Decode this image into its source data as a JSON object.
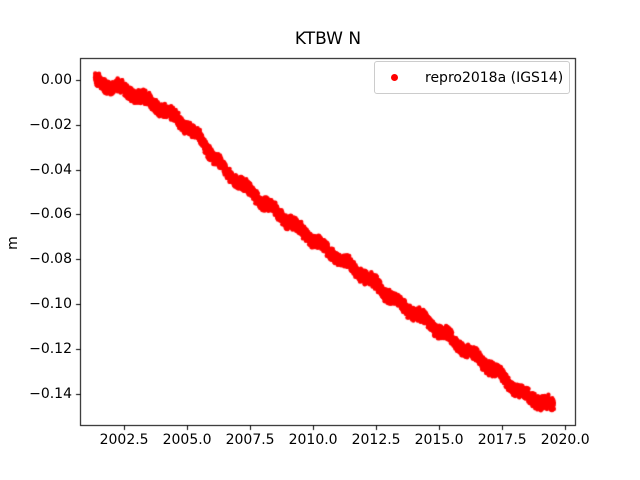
{
  "chart_data": {
    "type": "scatter",
    "title": "KTBW N",
    "xlabel": "",
    "ylabel": "m",
    "grid": false,
    "background_color": "#ffffff",
    "axes_color": "#000000",
    "xlim": [
      2000.75,
      2020.43
    ],
    "ylim": [
      -0.1545,
      0.0098
    ],
    "xticks": {
      "values": [
        2002.5,
        2005.0,
        2007.5,
        2010.0,
        2012.5,
        2015.0,
        2017.5,
        2020.0
      ],
      "labels": [
        "2002.5",
        "2005.0",
        "2007.5",
        "2010.0",
        "2012.5",
        "2015.0",
        "2017.5",
        "2020.0"
      ]
    },
    "yticks": {
      "values": [
        0.0,
        -0.02,
        -0.04,
        -0.06,
        -0.08,
        -0.1,
        -0.12,
        -0.14
      ],
      "labels": [
        "0.00",
        "−0.02",
        "−0.04",
        "−0.06",
        "−0.08",
        "−0.10",
        "−0.12",
        "−0.14"
      ]
    },
    "legend": {
      "position": "upper right",
      "entries": [
        {
          "label": "repro2018a (IGS14)",
          "color": "#ff0000",
          "marker": "dot"
        }
      ]
    },
    "series": [
      {
        "name": "repro2018a (IGS14)",
        "color": "#ff0000",
        "marker": "dot",
        "marker_radius_px": 2.2,
        "n_points": 5200,
        "x_start": 2001.35,
        "x_end": 2019.55,
        "trend_slope_m_per_yr": -0.008,
        "annual_amplitude_m": 0.0011,
        "noise_halfwidth_m": 0.0034,
        "center_line": [
          [
            2001.35,
            0.0
          ],
          [
            2001.6,
            -0.0015
          ],
          [
            2002.3,
            -0.0035
          ],
          [
            2003.0,
            -0.007
          ],
          [
            2003.5,
            -0.0095
          ],
          [
            2004.0,
            -0.013
          ],
          [
            2004.7,
            -0.018
          ],
          [
            2005.5,
            -0.026
          ],
          [
            2006.5,
            -0.0405
          ],
          [
            2007.9,
            -0.0535
          ],
          [
            2009.5,
            -0.067
          ],
          [
            2010.5,
            -0.0755
          ],
          [
            2011.5,
            -0.083
          ],
          [
            2012.5,
            -0.0915
          ],
          [
            2013.45,
            -0.1
          ],
          [
            2014.5,
            -0.1075
          ],
          [
            2015.8,
            -0.1183
          ],
          [
            2017.0,
            -0.128
          ],
          [
            2018.2,
            -0.1395
          ],
          [
            2019.0,
            -0.1435
          ],
          [
            2019.55,
            -0.1458
          ]
        ]
      }
    ]
  }
}
